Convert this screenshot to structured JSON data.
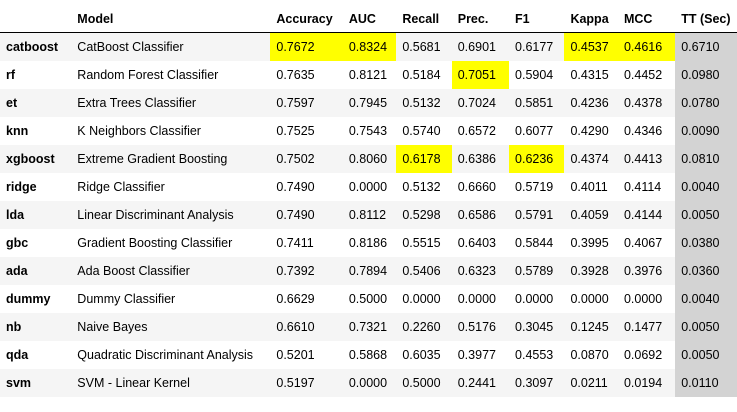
{
  "chart_data": {
    "type": "table",
    "columns": [
      "",
      "Model",
      "Accuracy",
      "AUC",
      "Recall",
      "Prec.",
      "F1",
      "Kappa",
      "MCC",
      "TT (Sec)"
    ],
    "rows": [
      {
        "id": "catboost",
        "model": "CatBoost Classifier",
        "values": [
          "0.7672",
          "0.8324",
          "0.5681",
          "0.6901",
          "0.6177",
          "0.4537",
          "0.4616",
          "0.6710"
        ],
        "highlight": [
          0,
          1,
          5,
          6
        ]
      },
      {
        "id": "rf",
        "model": "Random Forest Classifier",
        "values": [
          "0.7635",
          "0.8121",
          "0.5184",
          "0.7051",
          "0.5904",
          "0.4315",
          "0.4452",
          "0.0980"
        ],
        "highlight": [
          3
        ]
      },
      {
        "id": "et",
        "model": "Extra Trees Classifier",
        "values": [
          "0.7597",
          "0.7945",
          "0.5132",
          "0.7024",
          "0.5851",
          "0.4236",
          "0.4378",
          "0.0780"
        ],
        "highlight": []
      },
      {
        "id": "knn",
        "model": "K Neighbors Classifier",
        "values": [
          "0.7525",
          "0.7543",
          "0.5740",
          "0.6572",
          "0.6077",
          "0.4290",
          "0.4346",
          "0.0090"
        ],
        "highlight": []
      },
      {
        "id": "xgboost",
        "model": "Extreme Gradient Boosting",
        "values": [
          "0.7502",
          "0.8060",
          "0.6178",
          "0.6386",
          "0.6236",
          "0.4374",
          "0.4413",
          "0.0810"
        ],
        "highlight": [
          2,
          4
        ]
      },
      {
        "id": "ridge",
        "model": "Ridge Classifier",
        "values": [
          "0.7490",
          "0.0000",
          "0.5132",
          "0.6660",
          "0.5719",
          "0.4011",
          "0.4114",
          "0.0040"
        ],
        "highlight": []
      },
      {
        "id": "lda",
        "model": "Linear Discriminant Analysis",
        "values": [
          "0.7490",
          "0.8112",
          "0.5298",
          "0.6586",
          "0.5791",
          "0.4059",
          "0.4144",
          "0.0050"
        ],
        "highlight": []
      },
      {
        "id": "gbc",
        "model": "Gradient Boosting Classifier",
        "values": [
          "0.7411",
          "0.8186",
          "0.5515",
          "0.6403",
          "0.5844",
          "0.3995",
          "0.4067",
          "0.0380"
        ],
        "highlight": []
      },
      {
        "id": "ada",
        "model": "Ada Boost Classifier",
        "values": [
          "0.7392",
          "0.7894",
          "0.5406",
          "0.6323",
          "0.5789",
          "0.3928",
          "0.3976",
          "0.0360"
        ],
        "highlight": []
      },
      {
        "id": "dummy",
        "model": "Dummy Classifier",
        "values": [
          "0.6629",
          "0.5000",
          "0.0000",
          "0.0000",
          "0.0000",
          "0.0000",
          "0.0000",
          "0.0040"
        ],
        "highlight": []
      },
      {
        "id": "nb",
        "model": "Naive Bayes",
        "values": [
          "0.6610",
          "0.7321",
          "0.2260",
          "0.5176",
          "0.3045",
          "0.1245",
          "0.1477",
          "0.0050"
        ],
        "highlight": []
      },
      {
        "id": "qda",
        "model": "Quadratic Discriminant Analysis",
        "values": [
          "0.5201",
          "0.5868",
          "0.6035",
          "0.3977",
          "0.4553",
          "0.0870",
          "0.0692",
          "0.0050"
        ],
        "highlight": []
      },
      {
        "id": "svm",
        "model": "SVM - Linear Kernel",
        "values": [
          "0.5197",
          "0.0000",
          "0.5000",
          "0.2441",
          "0.3097",
          "0.0211",
          "0.0194",
          "0.0110"
        ],
        "highlight": []
      }
    ],
    "colors": {
      "highlight": "#ffff00",
      "tt_column": "#d3d3d3",
      "stripe": "#f5f5f5"
    }
  }
}
